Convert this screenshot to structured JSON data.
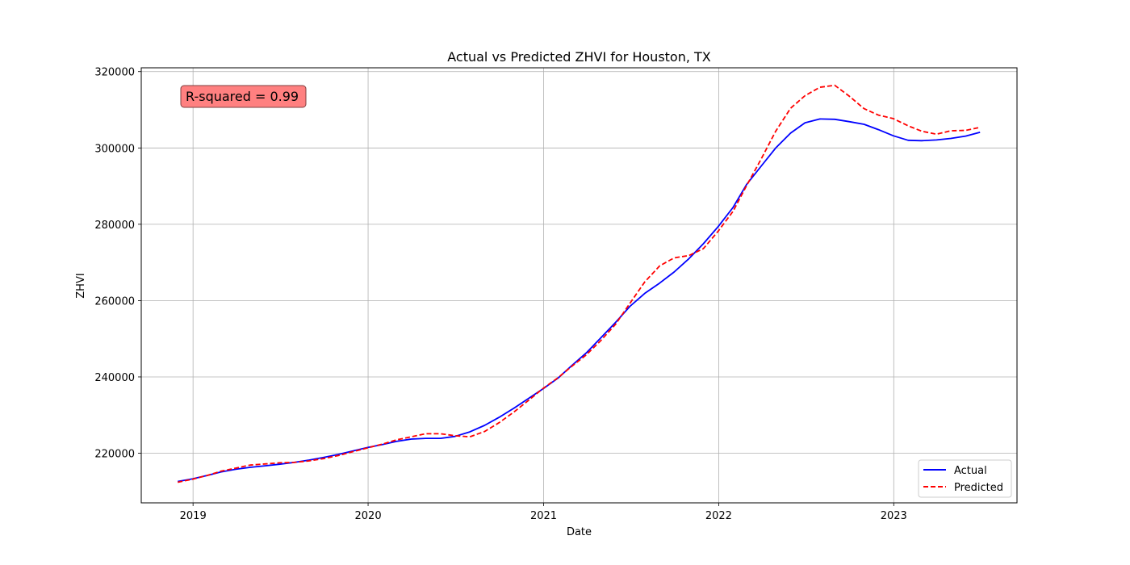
{
  "chart_data": {
    "type": "line",
    "title": "Actual vs Predicted ZHVI for Houston, TX",
    "xlabel": "Date",
    "ylabel": "ZHVI",
    "xlim": [
      "2018-09-15",
      "2023-09-15"
    ],
    "ylim": [
      207000,
      321000
    ],
    "grid": true,
    "legend_position": "lower-right",
    "x_ticks": [
      "2019",
      "2020",
      "2021",
      "2022",
      "2023"
    ],
    "y_ticks": [
      220000,
      240000,
      260000,
      280000,
      300000,
      320000
    ],
    "annotation": {
      "text": "R-squared = 0.99",
      "position": "top-left",
      "background": "#ff8080"
    },
    "x": [
      "2018-11-30",
      "2018-12-31",
      "2019-01-31",
      "2019-02-28",
      "2019-03-31",
      "2019-04-30",
      "2019-05-31",
      "2019-06-30",
      "2019-07-31",
      "2019-08-31",
      "2019-09-30",
      "2019-10-31",
      "2019-11-30",
      "2019-12-31",
      "2020-01-31",
      "2020-02-29",
      "2020-03-31",
      "2020-04-30",
      "2020-05-31",
      "2020-06-30",
      "2020-07-31",
      "2020-08-31",
      "2020-09-30",
      "2020-10-31",
      "2020-11-30",
      "2020-12-31",
      "2021-01-31",
      "2021-02-28",
      "2021-03-31",
      "2021-04-30",
      "2021-05-31",
      "2021-06-30",
      "2021-07-31",
      "2021-08-31",
      "2021-09-30",
      "2021-10-31",
      "2021-11-30",
      "2021-12-31",
      "2022-01-31",
      "2022-02-28",
      "2022-03-31",
      "2022-04-30",
      "2022-05-31",
      "2022-06-30",
      "2022-07-31",
      "2022-08-31",
      "2022-09-30",
      "2022-10-31",
      "2022-11-30",
      "2022-12-31",
      "2023-01-31",
      "2023-02-28",
      "2023-03-31",
      "2023-04-30",
      "2023-05-31",
      "2023-06-30"
    ],
    "series": [
      {
        "name": "Actual",
        "color": "#0000ff",
        "dash": "solid",
        "values": [
          212600,
          213300,
          214200,
          215100,
          215800,
          216300,
          216700,
          217100,
          217600,
          218200,
          218900,
          219700,
          220600,
          221500,
          222300,
          223100,
          223700,
          223900,
          223900,
          224400,
          225600,
          227300,
          229400,
          231800,
          234300,
          236900,
          239700,
          242900,
          246300,
          250200,
          254300,
          258500,
          261900,
          264600,
          267500,
          271000,
          274900,
          279400,
          284400,
          290400,
          295300,
          300000,
          303900,
          306600,
          307600,
          307500,
          306900,
          306200,
          304800,
          303200,
          302000,
          301900,
          302100,
          302500,
          303100,
          304100
        ]
      },
      {
        "name": "Predicted",
        "color": "#ff0000",
        "dash": "dashed",
        "values": [
          212400,
          213200,
          214200,
          215300,
          216100,
          216900,
          217200,
          217500,
          217600,
          218000,
          218600,
          219400,
          220400,
          221400,
          222400,
          223500,
          224300,
          225100,
          225100,
          224600,
          224300,
          225700,
          228000,
          230800,
          233800,
          237000,
          239800,
          242700,
          245800,
          249500,
          253800,
          259300,
          264900,
          269100,
          271200,
          271800,
          273600,
          278200,
          283400,
          290100,
          297200,
          304400,
          310400,
          313700,
          315900,
          316400,
          313600,
          310300,
          308600,
          307700,
          305800,
          304400,
          303600,
          304500,
          304600,
          305400
        ]
      }
    ]
  }
}
